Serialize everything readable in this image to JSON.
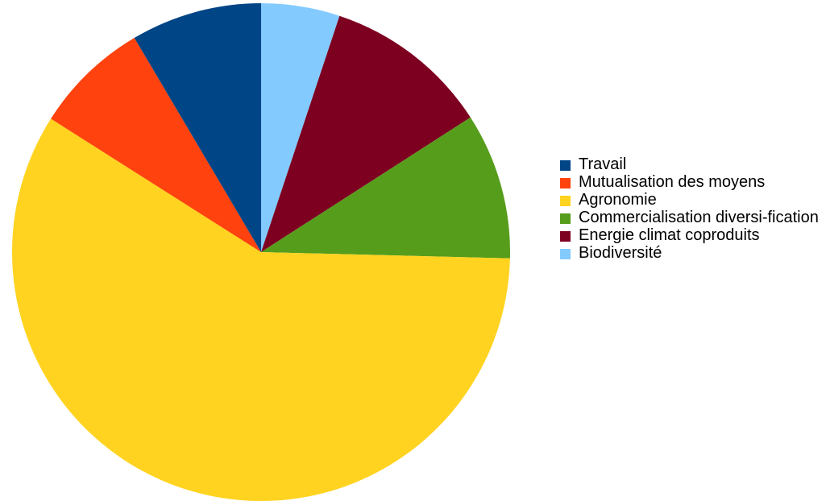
{
  "chart_data": {
    "type": "pie",
    "title": "",
    "start_angle_deg": 0,
    "direction": "clockwise",
    "legend_position": "right",
    "slices": [
      {
        "label": "Biodiversité",
        "value": 5.1,
        "color": "#83caff"
      },
      {
        "label": "Energie climat coproduits",
        "value": 10.8,
        "color": "#7e0021"
      },
      {
        "label": "Commercialisation diversi-fication",
        "value": 9.5,
        "color": "#579d1c"
      },
      {
        "label": "Agronomie",
        "value": 58.6,
        "color": "#ffd320"
      },
      {
        "label": "Mutualisation des moyens",
        "value": 7.5,
        "color": "#ff420e"
      },
      {
        "label": "Travail",
        "value": 8.5,
        "color": "#004586"
      }
    ]
  },
  "legend": {
    "items": [
      {
        "label": "Travail",
        "color": "#004586"
      },
      {
        "label": "Mutualisation des moyens",
        "color": "#ff420e"
      },
      {
        "label": "Agronomie",
        "color": "#ffd320"
      },
      {
        "label": "Commercialisation diversi-fication",
        "color": "#579d1c"
      },
      {
        "label": "Energie climat coproduits",
        "color": "#7e0021"
      },
      {
        "label": "Biodiversité",
        "color": "#83caff"
      }
    ]
  }
}
